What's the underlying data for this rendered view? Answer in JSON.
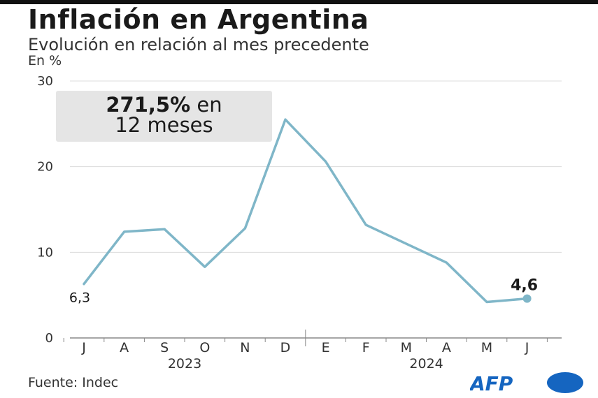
{
  "title": "Inflación en Argentina",
  "subtitle": "Evolución en relación al mes precedente",
  "unit": "En %",
  "source": "Fuente: Indec",
  "logo": "AFP",
  "callout": {
    "bold": "271,5%",
    "rest1": " en",
    "line2": "12 meses"
  },
  "colors": {
    "line": "#7fb6c8",
    "grid": "#dcdcdc",
    "axis": "#888888",
    "callout_bg": "#e5e5e5",
    "logo": "#1565c0"
  },
  "chart_data": {
    "type": "line",
    "title": "Inflación en Argentina",
    "subtitle": "Evolución en relación al mes precedente",
    "ylabel": "En %",
    "ylim": [
      0,
      30
    ],
    "yticks": [
      0,
      10,
      20,
      30
    ],
    "grid": true,
    "categories": [
      "J",
      "A",
      "S",
      "O",
      "N",
      "D",
      "E",
      "F",
      "M",
      "A",
      "M",
      "J"
    ],
    "years": [
      {
        "label": "2023",
        "from": 0,
        "to": 5
      },
      {
        "label": "2024",
        "from": 6,
        "to": 11
      }
    ],
    "series": [
      {
        "values": [
          6.3,
          12.4,
          12.7,
          8.3,
          12.8,
          25.5,
          20.6,
          13.2,
          11.0,
          8.8,
          4.2,
          4.6
        ]
      }
    ],
    "point_labels": [
      {
        "index": 0,
        "text": "6,3"
      },
      {
        "index": 11,
        "text": "4,6"
      }
    ]
  }
}
